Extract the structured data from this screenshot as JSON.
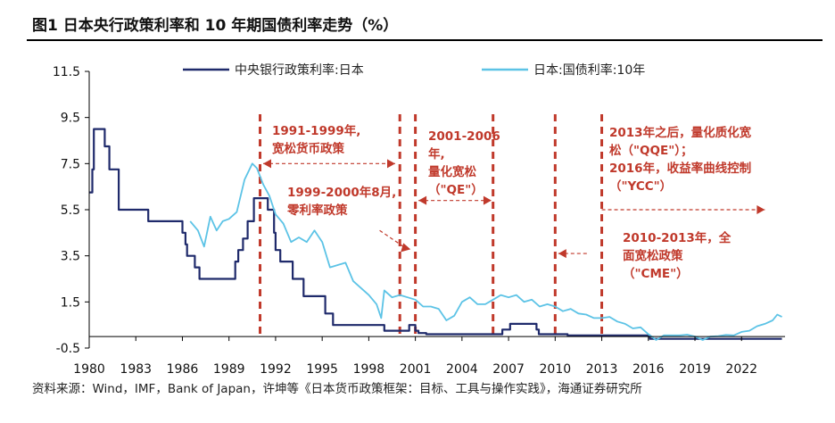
{
  "figure": {
    "title": "图1  日本央行政策利率和 10 年期国债利率走势（%）",
    "source": "资料来源：Wind，IMF，Bank of Japan，许坤等《日本货币政策框架：目标、工具与操作实践》，海通证券研究所"
  },
  "colors": {
    "policy_rate": "#1f2a6b",
    "bond_yield": "#5cc3e6",
    "annotation": "#c0392b",
    "axis": "#000000"
  },
  "chart_data": {
    "type": "line",
    "title": "日本央行政策利率和 10 年期国债利率走势（%）",
    "xlabel": "",
    "ylabel": "",
    "xlim": [
      1980,
      2024.8
    ],
    "ylim": [
      -0.5,
      11.5
    ],
    "x_ticks": [
      "1980",
      "1983",
      "1986",
      "1989",
      "1992",
      "1995",
      "1998",
      "2001",
      "2004",
      "2007",
      "2010",
      "2013",
      "2016",
      "2019",
      "2022"
    ],
    "y_ticks": [
      "11.5",
      "9.5",
      "7.5",
      "5.5",
      "3.5",
      "1.5",
      "-0.5"
    ],
    "legend_position": "top",
    "series": [
      {
        "name": "中央银行政策利率:日本",
        "style": "step",
        "x": [
          1980.0,
          1980.2,
          1980.3,
          1980.7,
          1981.0,
          1981.3,
          1981.9,
          1983.8,
          1986.0,
          1986.2,
          1986.3,
          1986.8,
          1987.1,
          1989.4,
          1989.6,
          1989.9,
          1990.2,
          1990.6,
          1991.5,
          1991.9,
          1992.0,
          1992.3,
          1993.1,
          1993.8,
          1995.2,
          1995.7,
          1999.0,
          2000.6,
          2001.0,
          2001.2,
          2001.7,
          2006.6,
          2007.1,
          2008.8,
          2008.95,
          2010.8,
          2016.1,
          2024.6
        ],
        "values": [
          6.25,
          7.25,
          9.0,
          9.0,
          8.25,
          7.25,
          5.5,
          5.0,
          4.5,
          4.0,
          3.5,
          3.0,
          2.5,
          3.25,
          3.75,
          4.25,
          5.0,
          6.0,
          5.5,
          4.5,
          3.75,
          3.25,
          2.5,
          1.75,
          1.0,
          0.5,
          0.25,
          0.5,
          0.25,
          0.15,
          0.1,
          0.3,
          0.55,
          0.3,
          0.1,
          0.05,
          -0.1,
          -0.1
        ]
      },
      {
        "name": "日本:国债利率:10年",
        "style": "line",
        "x": [
          1986.5,
          1987.0,
          1987.4,
          1987.8,
          1988.2,
          1988.6,
          1989.0,
          1989.5,
          1990.0,
          1990.5,
          1990.8,
          1991.2,
          1991.6,
          1992.0,
          1992.5,
          1993.0,
          1993.5,
          1994.0,
          1994.5,
          1995.0,
          1995.5,
          1996.0,
          1996.5,
          1997.0,
          1997.5,
          1998.0,
          1998.5,
          1998.8,
          1999.0,
          1999.5,
          2000.0,
          2000.5,
          2001.0,
          2001.5,
          2002.0,
          2002.5,
          2003.0,
          2003.5,
          2004.0,
          2004.5,
          2005.0,
          2005.5,
          2006.0,
          2006.5,
          2007.0,
          2007.5,
          2008.0,
          2008.5,
          2009.0,
          2009.5,
          2010.0,
          2010.5,
          2011.0,
          2011.5,
          2012.0,
          2012.5,
          2013.0,
          2013.5,
          2014.0,
          2014.5,
          2015.0,
          2015.5,
          2016.0,
          2016.5,
          2017.0,
          2017.5,
          2018.0,
          2018.5,
          2019.0,
          2019.5,
          2020.0,
          2020.5,
          2021.0,
          2021.5,
          2022.0,
          2022.5,
          2023.0,
          2023.5,
          2024.0,
          2024.3,
          2024.6
        ],
        "values": [
          5.0,
          4.6,
          3.9,
          5.2,
          4.6,
          5.0,
          5.1,
          5.4,
          6.8,
          7.5,
          7.3,
          6.6,
          6.1,
          5.3,
          4.9,
          4.1,
          4.3,
          4.1,
          4.6,
          4.1,
          3.0,
          3.1,
          3.2,
          2.4,
          2.1,
          1.8,
          1.4,
          0.8,
          2.0,
          1.7,
          1.8,
          1.7,
          1.6,
          1.3,
          1.3,
          1.2,
          0.7,
          0.9,
          1.5,
          1.7,
          1.4,
          1.4,
          1.6,
          1.8,
          1.7,
          1.8,
          1.5,
          1.6,
          1.3,
          1.4,
          1.3,
          1.1,
          1.2,
          1.0,
          0.95,
          0.8,
          0.8,
          0.85,
          0.65,
          0.55,
          0.35,
          0.4,
          0.1,
          -0.15,
          0.05,
          0.05,
          0.05,
          0.08,
          0.0,
          -0.15,
          0.0,
          0.02,
          0.07,
          0.05,
          0.2,
          0.25,
          0.45,
          0.55,
          0.7,
          0.95,
          0.85
        ]
      }
    ],
    "vertical_markers": [
      1991.0,
      2000.0,
      2001.0,
      2006.0,
      2010.0,
      2013.0
    ],
    "annotations": [
      {
        "lines": [
          "1991-1999年,",
          "宽松货币政策"
        ],
        "arrow_from": 1991.2,
        "arrow_to": 1999.7,
        "arrow_y": 7.5,
        "arrow_dir": "both"
      },
      {
        "lines": [
          "1999-2000年8月,",
          "零利率政策"
        ],
        "arrow_from": 1998.7,
        "arrow_to": 2000.0,
        "arrow_y": 4.6,
        "arrow_dir": "down-right"
      },
      {
        "lines": [
          "2001-2006",
          "年,",
          "量化宽松",
          "（\"QE\"）"
        ],
        "arrow_from": 2001.2,
        "arrow_to": 2005.9,
        "arrow_y": 5.9,
        "arrow_dir": "both"
      },
      {
        "lines": [
          "2010-2013年，全",
          "面宽松政策",
          "（\"CME\"）"
        ],
        "arrow_from": 2010.2,
        "arrow_to": 2012.2,
        "arrow_y": 3.6,
        "arrow_dir": "left"
      },
      {
        "lines": [
          "2013年之后，量化质化宽",
          "松（\"QQE\"）；",
          "2016年，收益率曲线控制",
          "（\"YCC\"）"
        ],
        "arrow_from": 2013.0,
        "arrow_to": 2023.5,
        "arrow_y": 5.5,
        "arrow_dir": "right"
      }
    ]
  }
}
